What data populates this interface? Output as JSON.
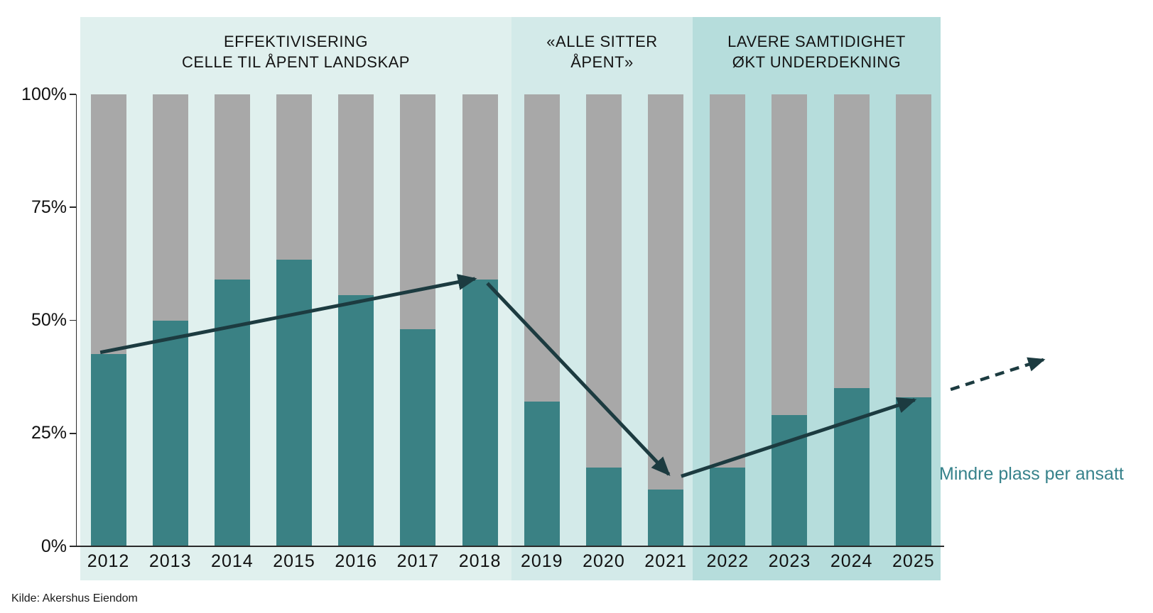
{
  "chart_data": {
    "type": "bar",
    "stacked": true,
    "unit": "%",
    "categories": [
      "2012",
      "2013",
      "2014",
      "2015",
      "2016",
      "2017",
      "2018",
      "2019",
      "2020",
      "2021",
      "2022",
      "2023",
      "2024",
      "2025"
    ],
    "series": [
      {
        "name": "teal",
        "color": "#3A8184",
        "values": [
          42.5,
          50,
          59,
          63.5,
          55.5,
          48,
          59,
          32,
          17.5,
          12.5,
          17.5,
          29,
          35,
          33
        ]
      },
      {
        "name": "gray",
        "color": "#A8A8A8",
        "values": [
          57.5,
          50,
          41,
          36.5,
          44.5,
          52,
          41,
          68,
          82.5,
          87.5,
          82.5,
          71,
          65,
          67
        ]
      }
    ],
    "ylim": [
      0,
      100
    ],
    "grid": false,
    "legend": "none",
    "ylabel_ticks": [
      "100%",
      "75%",
      "50%",
      "25%",
      "0%"
    ],
    "phases": [
      {
        "label_line1": "EFFEKTIVISERING",
        "label_line2": "CELLE TIL ÅPENT LANDSKAP",
        "first_year": "2012",
        "last_year": "2018",
        "color": "#E0F0EE"
      },
      {
        "label_line1": "«ALLE SITTER",
        "label_line2": "ÅPENT»",
        "first_year": "2019",
        "last_year": "2021",
        "color": "#D3EAE9"
      },
      {
        "label_line1": "LAVERE SAMTIDIGHET",
        "label_line2": "ØKT UNDERDEKNING",
        "first_year": "2022",
        "last_year": "2025",
        "color": "#B6DDDC"
      }
    ],
    "arrows": [
      {
        "from": {
          "year": 2011.87,
          "pct": 42.9
        },
        "to": {
          "year": 2017.92,
          "pct": 59.2
        },
        "style": "solid"
      },
      {
        "from": {
          "year": 2018.12,
          "pct": 58.2
        },
        "to": {
          "year": 2021.05,
          "pct": 15.9
        },
        "style": "solid"
      },
      {
        "from": {
          "year": 2021.25,
          "pct": 15.5
        },
        "to": {
          "year": 2025.02,
          "pct": 32.4
        },
        "style": "solid"
      },
      {
        "from": {
          "year": 2025.6,
          "pct": 34.7
        },
        "to": {
          "year": 2027.1,
          "pct": 41.3
        },
        "style": "dashed"
      }
    ],
    "annotation": "Mindre plass per ansatt",
    "source": "Kilde: Akershus Eiendom"
  },
  "colors": {
    "bar_teal": "#3A8184",
    "bar_gray": "#A8A8A8",
    "arrow": "#1C3B40",
    "annotation_text": "#37828B",
    "band_1": "#E0F0EE",
    "band_2": "#D3EAE9",
    "band_3": "#B6DDDC",
    "axis": "#2A2A2A"
  }
}
